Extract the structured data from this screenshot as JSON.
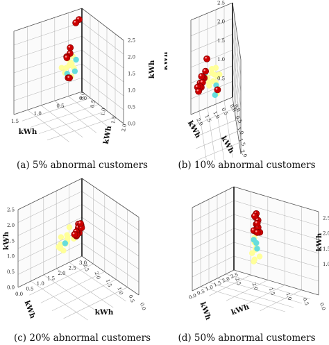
{
  "chart_data": [
    {
      "type": "scatter",
      "caption": "(a) 5% abnormal customers",
      "zlabel": "kWh",
      "xlabel": "kWh",
      "ylabel": "kWh",
      "zticks": [
        "2.5",
        "2.0",
        "1.5",
        "1.0",
        "0.5",
        "0.0"
      ],
      "xticks": [
        "1.5",
        "1.0",
        "0.5",
        "0.0"
      ],
      "yticks": [
        "2.0",
        "1.5",
        "1.0",
        "0.5",
        "0.0"
      ],
      "series": [
        {
          "color": "#ffff99",
          "points": [
            [
              0.6,
              0.6,
              1.55
            ],
            [
              0.55,
              0.65,
              1.45
            ],
            [
              0.5,
              0.6,
              1.35
            ],
            [
              0.6,
              0.55,
              1.25
            ],
            [
              0.65,
              0.6,
              1.15
            ],
            [
              0.55,
              0.7,
              1.05
            ],
            [
              0.5,
              0.65,
              1.6
            ],
            [
              0.7,
              0.55,
              1.3
            ],
            [
              0.45,
              0.6,
              1.2
            ],
            [
              0.6,
              0.7,
              1.4
            ]
          ]
        },
        {
          "color": "#66dddd",
          "points": [
            [
              0.45,
              0.7,
              1.5
            ],
            [
              0.5,
              0.75,
              1.2
            ],
            [
              0.6,
              0.6,
              1.1
            ]
          ]
        },
        {
          "color": "#cc0000",
          "points": [
            [
              0.2,
              0.3,
              2.4
            ],
            [
              0.25,
              0.25,
              2.3
            ],
            [
              0.9,
              1.4,
              2.4
            ],
            [
              0.95,
              1.5,
              2.3
            ],
            [
              1.0,
              1.45,
              2.2
            ],
            [
              0.95,
              1.35,
              2.1
            ],
            [
              0.6,
              0.65,
              1.0
            ],
            [
              0.55,
              0.6,
              0.95
            ]
          ]
        }
      ]
    },
    {
      "type": "scatter",
      "caption": "(b) 10% abnormal customers",
      "zlabel": "kWh",
      "xlabel": "kWh",
      "ylabel": "kWh",
      "zticks": [
        "2.5",
        "2.0",
        "1.5",
        "1.0",
        "0.5"
      ],
      "xticks": [
        "2.5",
        "2.0",
        "1.5",
        "1.0",
        "0.5",
        "0.0"
      ],
      "yticks": [
        "2.5",
        "2.0",
        "1.5",
        "1.0",
        "0.5",
        "0.0"
      ],
      "series": [
        {
          "color": "#ffff99",
          "points": [
            [
              1.2,
              1.0,
              1.6
            ],
            [
              1.3,
              1.1,
              1.5
            ],
            [
              1.4,
              1.2,
              1.4
            ],
            [
              1.1,
              0.9,
              1.3
            ],
            [
              1.5,
              1.3,
              1.7
            ],
            [
              1.6,
              1.0,
              1.2
            ],
            [
              1.2,
              1.3,
              1.1
            ],
            [
              1.0,
              1.1,
              1.45
            ],
            [
              1.7,
              1.4,
              1.55
            ],
            [
              1.35,
              0.95,
              1.25
            ],
            [
              1.25,
              1.2,
              1.35
            ],
            [
              1.45,
              1.05,
              1.65
            ],
            [
              1.15,
              1.25,
              1.2
            ],
            [
              1.8,
              1.5,
              1.75
            ]
          ]
        },
        {
          "color": "#66dddd",
          "points": [
            [
              1.2,
              1.1,
              1.2
            ],
            [
              1.3,
              1.25,
              1.05
            ],
            [
              2.0,
              1.8,
              2.1
            ]
          ]
        },
        {
          "color": "#cc0000",
          "points": [
            [
              2.0,
              1.9,
              2.2
            ],
            [
              2.1,
              2.0,
              2.1
            ],
            [
              2.2,
              2.1,
              2.2
            ],
            [
              2.3,
              2.2,
              2.3
            ],
            [
              2.4,
              2.3,
              2.2
            ],
            [
              2.5,
              2.4,
              2.1
            ],
            [
              2.2,
              2.0,
              2.0
            ],
            [
              2.3,
              2.1,
              1.95
            ],
            [
              2.4,
              2.2,
              2.05
            ],
            [
              2.6,
              2.5,
              2.25
            ],
            [
              1.9,
              1.8,
              2.45
            ],
            [
              2.5,
              2.3,
              2.0
            ],
            [
              1.1,
              1.0,
              1.0
            ]
          ]
        }
      ]
    },
    {
      "type": "scatter",
      "caption": "(c) 20% abnormal customers",
      "zlabel": "kWh",
      "xlabel": "kWh",
      "ylabel": "kWh",
      "zticks": [
        "2.5",
        "2.0",
        "1.5",
        "1.0",
        "0.5",
        "0.0"
      ],
      "xticks": [
        "0.0",
        "0.5",
        "1.0",
        "1.5",
        "2.0",
        "2.5",
        "3.0"
      ],
      "yticks": [
        "0.0",
        "0.5",
        "1.0",
        "1.5",
        "2.0",
        "2.5"
      ],
      "series": [
        {
          "color": "#ffff99",
          "points": [
            [
              2.3,
              1.5,
              2.2
            ],
            [
              2.4,
              1.6,
              2.1
            ],
            [
              2.5,
              1.7,
              2.3
            ],
            [
              2.6,
              1.5,
              2.0
            ],
            [
              2.2,
              1.4,
              1.9
            ],
            [
              2.7,
              1.8,
              2.2
            ],
            [
              2.8,
              1.7,
              2.4
            ],
            [
              2.5,
              1.4,
              1.8
            ],
            [
              2.3,
              1.6,
              2.5
            ],
            [
              2.9,
              1.9,
              2.1
            ],
            [
              2.4,
              1.3,
              1.7
            ],
            [
              2.6,
              1.8,
              2.35
            ],
            [
              2.7,
              1.5,
              1.95
            ],
            [
              2.2,
              1.7,
              2.15
            ]
          ]
        },
        {
          "color": "#66dddd",
          "points": [
            [
              2.5,
              1.6,
              2.05
            ]
          ]
        },
        {
          "color": "#cc0000",
          "points": [
            [
              0.8,
              0.6,
              1.6
            ],
            [
              0.9,
              0.7,
              1.5
            ],
            [
              1.0,
              0.8,
              1.55
            ],
            [
              1.1,
              0.9,
              1.6
            ],
            [
              1.2,
              1.0,
              1.65
            ],
            [
              1.3,
              1.0,
              1.7
            ],
            [
              1.4,
              1.1,
              1.75
            ],
            [
              1.5,
              1.2,
              1.8
            ],
            [
              1.6,
              1.2,
              1.85
            ],
            [
              1.7,
              1.3,
              1.9
            ],
            [
              0.7,
              0.5,
              1.4
            ],
            [
              0.8,
              0.5,
              1.3
            ],
            [
              0.9,
              0.6,
              1.25
            ],
            [
              1.0,
              0.7,
              1.35
            ],
            [
              1.1,
              0.8,
              1.45
            ],
            [
              1.2,
              0.8,
              1.5
            ],
            [
              0.9,
              0.8,
              1.7
            ],
            [
              1.0,
              0.9,
              1.75
            ],
            [
              1.3,
              1.2,
              1.95
            ],
            [
              0.6,
              0.5,
              1.5
            ]
          ]
        }
      ]
    },
    {
      "type": "scatter",
      "caption": "(d) 50% abnormal customers",
      "zlabel": "kWh",
      "xlabel": "kWh",
      "ylabel": "kWh",
      "zticks": [
        "2.5",
        "2.0",
        "1.5",
        "1.0"
      ],
      "xticks": [
        "0.0",
        "0.5",
        "1.0",
        "1.5",
        "2.0",
        "2.5"
      ],
      "yticks": [
        "0.0",
        "0.5",
        "1.0",
        "1.5",
        "2.0",
        "2.5"
      ],
      "series": [
        {
          "color": "#ffff99",
          "points": [
            [
              1.2,
              1.2,
              1.6
            ],
            [
              1.3,
              1.3,
              1.5
            ],
            [
              1.25,
              1.25,
              1.4
            ],
            [
              1.35,
              1.2,
              1.3
            ],
            [
              1.2,
              1.35,
              1.2
            ],
            [
              1.3,
              1.25,
              1.1
            ],
            [
              0.6,
              0.9,
              1.5
            ],
            [
              1.4,
              1.3,
              1.7
            ],
            [
              1.25,
              1.2,
              1.0
            ]
          ]
        },
        {
          "color": "#66dddd",
          "points": [
            [
              1.3,
              1.3,
              1.65
            ],
            [
              1.35,
              1.25,
              1.75
            ],
            [
              1.25,
              1.3,
              1.45
            ]
          ]
        },
        {
          "color": "#cc0000",
          "points": [
            [
              1.3,
              1.3,
              2.6
            ],
            [
              1.35,
              1.3,
              2.5
            ],
            [
              1.3,
              1.35,
              2.4
            ],
            [
              1.4,
              1.35,
              2.3
            ],
            [
              1.45,
              1.4,
              2.2
            ],
            [
              1.5,
              1.4,
              2.1
            ],
            [
              1.35,
              1.25,
              2.05
            ],
            [
              1.6,
              1.5,
              2.3
            ],
            [
              1.7,
              1.6,
              2.2
            ],
            [
              1.55,
              1.45,
              2.4
            ],
            [
              1.4,
              1.3,
              2.55
            ],
            [
              1.65,
              1.5,
              2.15
            ]
          ]
        }
      ]
    }
  ]
}
